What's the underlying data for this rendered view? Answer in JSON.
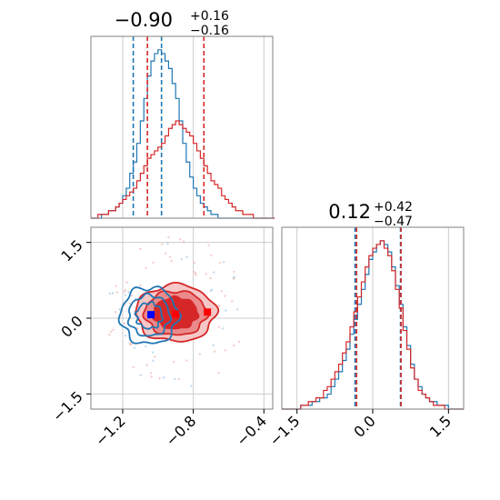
{
  "chart_data": {
    "type": "corner",
    "colors": {
      "blue": "#1f77b4",
      "red": "#d62728",
      "grid": "#cccccc",
      "marker_blue": "#0000ff",
      "marker_red": "#ff0000"
    },
    "panels": [
      {
        "id": "hist-x",
        "type": "histogram",
        "title": {
          "main": "−0.90",
          "sup": "+0.16",
          "sub": "−0.16"
        },
        "xlim": [
          -1.38,
          -0.35
        ],
        "grid": true,
        "series": [
          {
            "name": "",
            "color": "#1f77b4",
            "quantiles": [
              -1.14,
              -0.98
            ],
            "bins": {
              "start": -1.38,
              "step": 0.02,
              "counts": [
                0,
                0,
                0,
                1,
                1,
                2,
                2,
                3,
                4,
                6,
                8,
                12,
                15,
                20,
                26,
                32,
                38,
                42,
                44,
                45,
                44,
                42,
                40,
                36,
                32,
                26,
                20,
                15,
                11,
                8,
                6,
                4,
                3,
                2,
                1,
                1,
                0,
                0,
                0,
                0,
                0,
                0,
                0,
                0,
                0,
                0,
                0,
                0,
                0,
                0,
                0,
                0
              ]
            }
          },
          {
            "name": "",
            "color": "#d62728",
            "quantiles": [
              -1.06,
              -0.74
            ],
            "bins": {
              "start": -1.38,
              "step": 0.02,
              "counts": [
                0,
                0,
                1,
                1,
                1,
                2,
                2,
                3,
                4,
                5,
                6,
                7,
                8,
                10,
                12,
                14,
                16,
                17,
                18,
                19,
                20,
                22,
                24,
                25,
                26,
                25,
                24,
                23,
                22,
                20,
                18,
                16,
                14,
                12,
                10,
                9,
                8,
                6,
                5,
                4,
                3,
                2,
                2,
                1,
                1,
                1,
                0,
                0,
                0,
                0,
                0,
                0
              ]
            }
          }
        ]
      },
      {
        "id": "hist-y",
        "type": "histogram",
        "title": {
          "main": "0.12",
          "sup": "+0.42",
          "sub": "−0.47"
        },
        "xlim": [
          -1.8,
          1.8
        ],
        "xticks": [
          "−1.5",
          "0.0",
          "1.5"
        ],
        "xtick_values": [
          -1.5,
          0.0,
          1.5
        ],
        "grid": true,
        "series": [
          {
            "name": "",
            "color": "#1f77b4",
            "quantiles": [
              -0.35,
              0.55
            ],
            "bins": {
              "start": -1.8,
              "step": 0.075,
              "counts": [
                0,
                0,
                0,
                0,
                0,
                1,
                1,
                1,
                2,
                2,
                3,
                3,
                4,
                6,
                8,
                10,
                13,
                16,
                20,
                24,
                28,
                32,
                36,
                40,
                42,
                44,
                45,
                44,
                42,
                38,
                33,
                28,
                22,
                17,
                12,
                8,
                6,
                4,
                3,
                2,
                2,
                1,
                1,
                1,
                0,
                0,
                0,
                0
              ]
            }
          },
          {
            "name": "",
            "color": "#d62728",
            "quantiles": [
              -0.32,
              0.56
            ],
            "bins": {
              "start": -1.8,
              "step": 0.075,
              "counts": [
                0,
                0,
                0,
                0,
                0,
                1,
                1,
                2,
                2,
                3,
                3,
                5,
                6,
                8,
                10,
                12,
                15,
                18,
                22,
                26,
                30,
                34,
                38,
                41,
                43,
                44,
                45,
                43,
                41,
                37,
                32,
                27,
                21,
                16,
                11,
                8,
                5,
                4,
                3,
                2,
                1,
                1,
                1,
                0,
                0,
                0,
                0,
                0
              ]
            }
          }
        ]
      },
      {
        "id": "joint",
        "type": "contour",
        "xlim": [
          -1.38,
          -0.35
        ],
        "ylim": [
          -1.8,
          1.8
        ],
        "xticks": [
          "−1.2",
          "−0.8",
          "−0.4"
        ],
        "xtick_values": [
          -1.2,
          -0.8,
          -0.4
        ],
        "yticks": [
          "1.5",
          "0.0",
          "−1.5"
        ],
        "ytick_values": [
          1.5,
          0.0,
          -1.5
        ],
        "grid": true,
        "series": [
          {
            "name": "",
            "color": "#1f77b4",
            "center": [
              -1.05,
              0.05
            ],
            "spread": [
              0.12,
              0.45
            ],
            "marker": [
              -1.04,
              0.07
            ]
          },
          {
            "name": "",
            "color": "#d62728",
            "center": [
              -0.9,
              0.1
            ],
            "spread": [
              0.18,
              0.45
            ],
            "markers": [
              [
                -0.9,
                0.08
              ],
              [
                -0.72,
                0.12
              ]
            ]
          }
        ]
      }
    ]
  }
}
